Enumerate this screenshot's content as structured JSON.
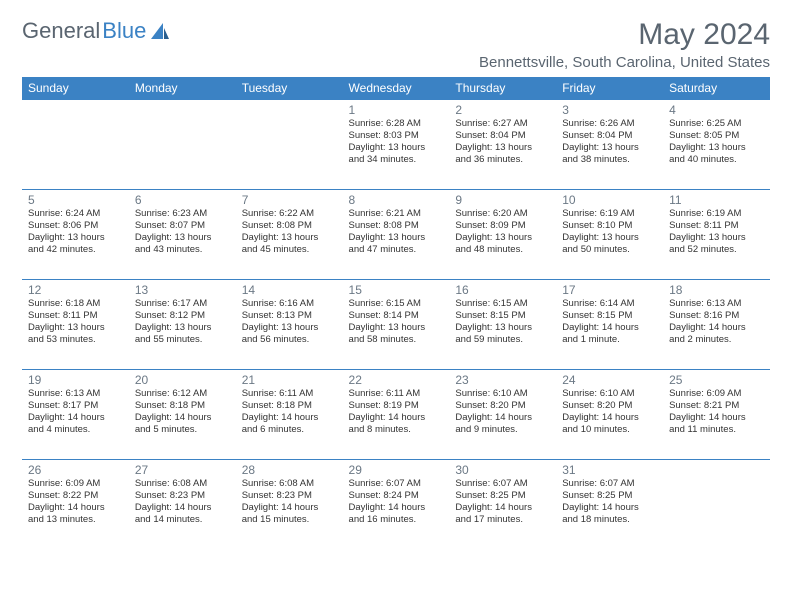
{
  "logo": {
    "text1": "General",
    "text2": "Blue"
  },
  "title": "May 2024",
  "location": "Bennettsville, South Carolina, United States",
  "colors": {
    "header_bg": "#3b82c4",
    "header_text": "#ffffff",
    "border": "#3b82c4",
    "body_text": "#333333",
    "muted": "#5a6570"
  },
  "day_headers": [
    "Sunday",
    "Monday",
    "Tuesday",
    "Wednesday",
    "Thursday",
    "Friday",
    "Saturday"
  ],
  "weeks": [
    [
      null,
      null,
      null,
      {
        "n": "1",
        "sr": "Sunrise: 6:28 AM",
        "ss": "Sunset: 8:03 PM",
        "dl": "Daylight: 13 hours and 34 minutes."
      },
      {
        "n": "2",
        "sr": "Sunrise: 6:27 AM",
        "ss": "Sunset: 8:04 PM",
        "dl": "Daylight: 13 hours and 36 minutes."
      },
      {
        "n": "3",
        "sr": "Sunrise: 6:26 AM",
        "ss": "Sunset: 8:04 PM",
        "dl": "Daylight: 13 hours and 38 minutes."
      },
      {
        "n": "4",
        "sr": "Sunrise: 6:25 AM",
        "ss": "Sunset: 8:05 PM",
        "dl": "Daylight: 13 hours and 40 minutes."
      }
    ],
    [
      {
        "n": "5",
        "sr": "Sunrise: 6:24 AM",
        "ss": "Sunset: 8:06 PM",
        "dl": "Daylight: 13 hours and 42 minutes."
      },
      {
        "n": "6",
        "sr": "Sunrise: 6:23 AM",
        "ss": "Sunset: 8:07 PM",
        "dl": "Daylight: 13 hours and 43 minutes."
      },
      {
        "n": "7",
        "sr": "Sunrise: 6:22 AM",
        "ss": "Sunset: 8:08 PM",
        "dl": "Daylight: 13 hours and 45 minutes."
      },
      {
        "n": "8",
        "sr": "Sunrise: 6:21 AM",
        "ss": "Sunset: 8:08 PM",
        "dl": "Daylight: 13 hours and 47 minutes."
      },
      {
        "n": "9",
        "sr": "Sunrise: 6:20 AM",
        "ss": "Sunset: 8:09 PM",
        "dl": "Daylight: 13 hours and 48 minutes."
      },
      {
        "n": "10",
        "sr": "Sunrise: 6:19 AM",
        "ss": "Sunset: 8:10 PM",
        "dl": "Daylight: 13 hours and 50 minutes."
      },
      {
        "n": "11",
        "sr": "Sunrise: 6:19 AM",
        "ss": "Sunset: 8:11 PM",
        "dl": "Daylight: 13 hours and 52 minutes."
      }
    ],
    [
      {
        "n": "12",
        "sr": "Sunrise: 6:18 AM",
        "ss": "Sunset: 8:11 PM",
        "dl": "Daylight: 13 hours and 53 minutes."
      },
      {
        "n": "13",
        "sr": "Sunrise: 6:17 AM",
        "ss": "Sunset: 8:12 PM",
        "dl": "Daylight: 13 hours and 55 minutes."
      },
      {
        "n": "14",
        "sr": "Sunrise: 6:16 AM",
        "ss": "Sunset: 8:13 PM",
        "dl": "Daylight: 13 hours and 56 minutes."
      },
      {
        "n": "15",
        "sr": "Sunrise: 6:15 AM",
        "ss": "Sunset: 8:14 PM",
        "dl": "Daylight: 13 hours and 58 minutes."
      },
      {
        "n": "16",
        "sr": "Sunrise: 6:15 AM",
        "ss": "Sunset: 8:15 PM",
        "dl": "Daylight: 13 hours and 59 minutes."
      },
      {
        "n": "17",
        "sr": "Sunrise: 6:14 AM",
        "ss": "Sunset: 8:15 PM",
        "dl": "Daylight: 14 hours and 1 minute."
      },
      {
        "n": "18",
        "sr": "Sunrise: 6:13 AM",
        "ss": "Sunset: 8:16 PM",
        "dl": "Daylight: 14 hours and 2 minutes."
      }
    ],
    [
      {
        "n": "19",
        "sr": "Sunrise: 6:13 AM",
        "ss": "Sunset: 8:17 PM",
        "dl": "Daylight: 14 hours and 4 minutes."
      },
      {
        "n": "20",
        "sr": "Sunrise: 6:12 AM",
        "ss": "Sunset: 8:18 PM",
        "dl": "Daylight: 14 hours and 5 minutes."
      },
      {
        "n": "21",
        "sr": "Sunrise: 6:11 AM",
        "ss": "Sunset: 8:18 PM",
        "dl": "Daylight: 14 hours and 6 minutes."
      },
      {
        "n": "22",
        "sr": "Sunrise: 6:11 AM",
        "ss": "Sunset: 8:19 PM",
        "dl": "Daylight: 14 hours and 8 minutes."
      },
      {
        "n": "23",
        "sr": "Sunrise: 6:10 AM",
        "ss": "Sunset: 8:20 PM",
        "dl": "Daylight: 14 hours and 9 minutes."
      },
      {
        "n": "24",
        "sr": "Sunrise: 6:10 AM",
        "ss": "Sunset: 8:20 PM",
        "dl": "Daylight: 14 hours and 10 minutes."
      },
      {
        "n": "25",
        "sr": "Sunrise: 6:09 AM",
        "ss": "Sunset: 8:21 PM",
        "dl": "Daylight: 14 hours and 11 minutes."
      }
    ],
    [
      {
        "n": "26",
        "sr": "Sunrise: 6:09 AM",
        "ss": "Sunset: 8:22 PM",
        "dl": "Daylight: 14 hours and 13 minutes."
      },
      {
        "n": "27",
        "sr": "Sunrise: 6:08 AM",
        "ss": "Sunset: 8:23 PM",
        "dl": "Daylight: 14 hours and 14 minutes."
      },
      {
        "n": "28",
        "sr": "Sunrise: 6:08 AM",
        "ss": "Sunset: 8:23 PM",
        "dl": "Daylight: 14 hours and 15 minutes."
      },
      {
        "n": "29",
        "sr": "Sunrise: 6:07 AM",
        "ss": "Sunset: 8:24 PM",
        "dl": "Daylight: 14 hours and 16 minutes."
      },
      {
        "n": "30",
        "sr": "Sunrise: 6:07 AM",
        "ss": "Sunset: 8:25 PM",
        "dl": "Daylight: 14 hours and 17 minutes."
      },
      {
        "n": "31",
        "sr": "Sunrise: 6:07 AM",
        "ss": "Sunset: 8:25 PM",
        "dl": "Daylight: 14 hours and 18 minutes."
      },
      null
    ]
  ]
}
